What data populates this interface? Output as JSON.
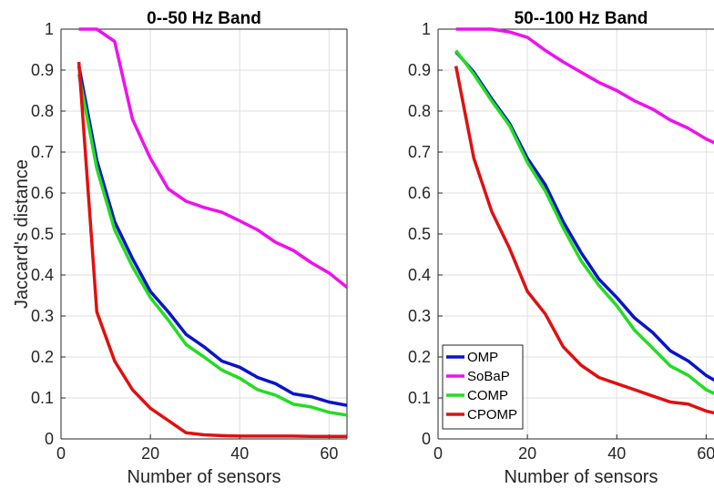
{
  "chart_data": [
    {
      "type": "line",
      "title": "0--50 Hz Band",
      "xlabel": "Number of sensors",
      "ylabel": "Jaccard's distance",
      "xlim": [
        0,
        64
      ],
      "ylim": [
        0,
        1
      ],
      "xticks": [
        "0",
        "20",
        "40",
        "60"
      ],
      "yticks": [
        "0",
        "0.1",
        "0.2",
        "0.3",
        "0.4",
        "0.5",
        "0.6",
        "0.7",
        "0.8",
        "0.9",
        "1"
      ],
      "grid": true,
      "x": [
        4,
        8,
        12,
        16,
        20,
        24,
        28,
        32,
        36,
        40,
        44,
        48,
        52,
        56,
        60,
        64
      ],
      "series": [
        {
          "name": "OMP",
          "color": "#0a14c8",
          "values": [
            0.91,
            0.68,
            0.53,
            0.44,
            0.36,
            0.31,
            0.255,
            0.225,
            0.19,
            0.175,
            0.15,
            0.135,
            0.11,
            0.103,
            0.09,
            0.082
          ]
        },
        {
          "name": "SoBaP",
          "color": "#ee11ee",
          "values": [
            1.0,
            1.0,
            0.97,
            0.78,
            0.685,
            0.61,
            0.58,
            0.565,
            0.553,
            0.532,
            0.51,
            0.48,
            0.46,
            0.43,
            0.405,
            0.37
          ]
        },
        {
          "name": "COMP",
          "color": "#22dd22",
          "values": [
            0.89,
            0.66,
            0.51,
            0.42,
            0.345,
            0.29,
            0.23,
            0.2,
            0.168,
            0.148,
            0.12,
            0.107,
            0.085,
            0.078,
            0.065,
            0.058
          ]
        },
        {
          "name": "CPOMP",
          "color": "#e01010",
          "values": [
            0.92,
            0.31,
            0.19,
            0.12,
            0.075,
            0.045,
            0.015,
            0.01,
            0.008,
            0.007,
            0.007,
            0.007,
            0.007,
            0.006,
            0.006,
            0.006
          ]
        }
      ]
    },
    {
      "type": "line",
      "title": "50--100 Hz Band",
      "xlabel": "Number of sensors",
      "ylabel": "",
      "xlim": [
        0,
        64
      ],
      "ylim": [
        0,
        1
      ],
      "xticks": [
        "0",
        "20",
        "40",
        "60"
      ],
      "yticks": [
        "0",
        "0.1",
        "0.2",
        "0.3",
        "0.4",
        "0.5",
        "0.6",
        "0.7",
        "0.8",
        "0.9",
        "1"
      ],
      "grid": true,
      "legend": "bottom-left",
      "x": [
        4,
        8,
        12,
        16,
        20,
        24,
        28,
        32,
        36,
        40,
        44,
        48,
        52,
        56,
        60,
        64
      ],
      "series": [
        {
          "name": "OMP",
          "color": "#0a14c8",
          "values": [
            0.945,
            0.895,
            0.83,
            0.77,
            0.685,
            0.62,
            0.53,
            0.455,
            0.39,
            0.345,
            0.295,
            0.26,
            0.215,
            0.19,
            0.155,
            0.13
          ]
        },
        {
          "name": "SoBaP",
          "color": "#ee11ee",
          "values": [
            1.0,
            1.0,
            1.0,
            0.993,
            0.98,
            0.948,
            0.92,
            0.895,
            0.87,
            0.85,
            0.825,
            0.805,
            0.778,
            0.758,
            0.732,
            0.712
          ]
        },
        {
          "name": "COMP",
          "color": "#22dd22",
          "values": [
            0.948,
            0.89,
            0.825,
            0.765,
            0.675,
            0.605,
            0.515,
            0.435,
            0.375,
            0.325,
            0.265,
            0.222,
            0.178,
            0.155,
            0.12,
            0.1
          ]
        },
        {
          "name": "CPOMP",
          "color": "#e01010",
          "values": [
            0.91,
            0.685,
            0.555,
            0.465,
            0.36,
            0.305,
            0.225,
            0.18,
            0.15,
            0.135,
            0.12,
            0.105,
            0.09,
            0.085,
            0.068,
            0.058
          ]
        }
      ]
    }
  ]
}
